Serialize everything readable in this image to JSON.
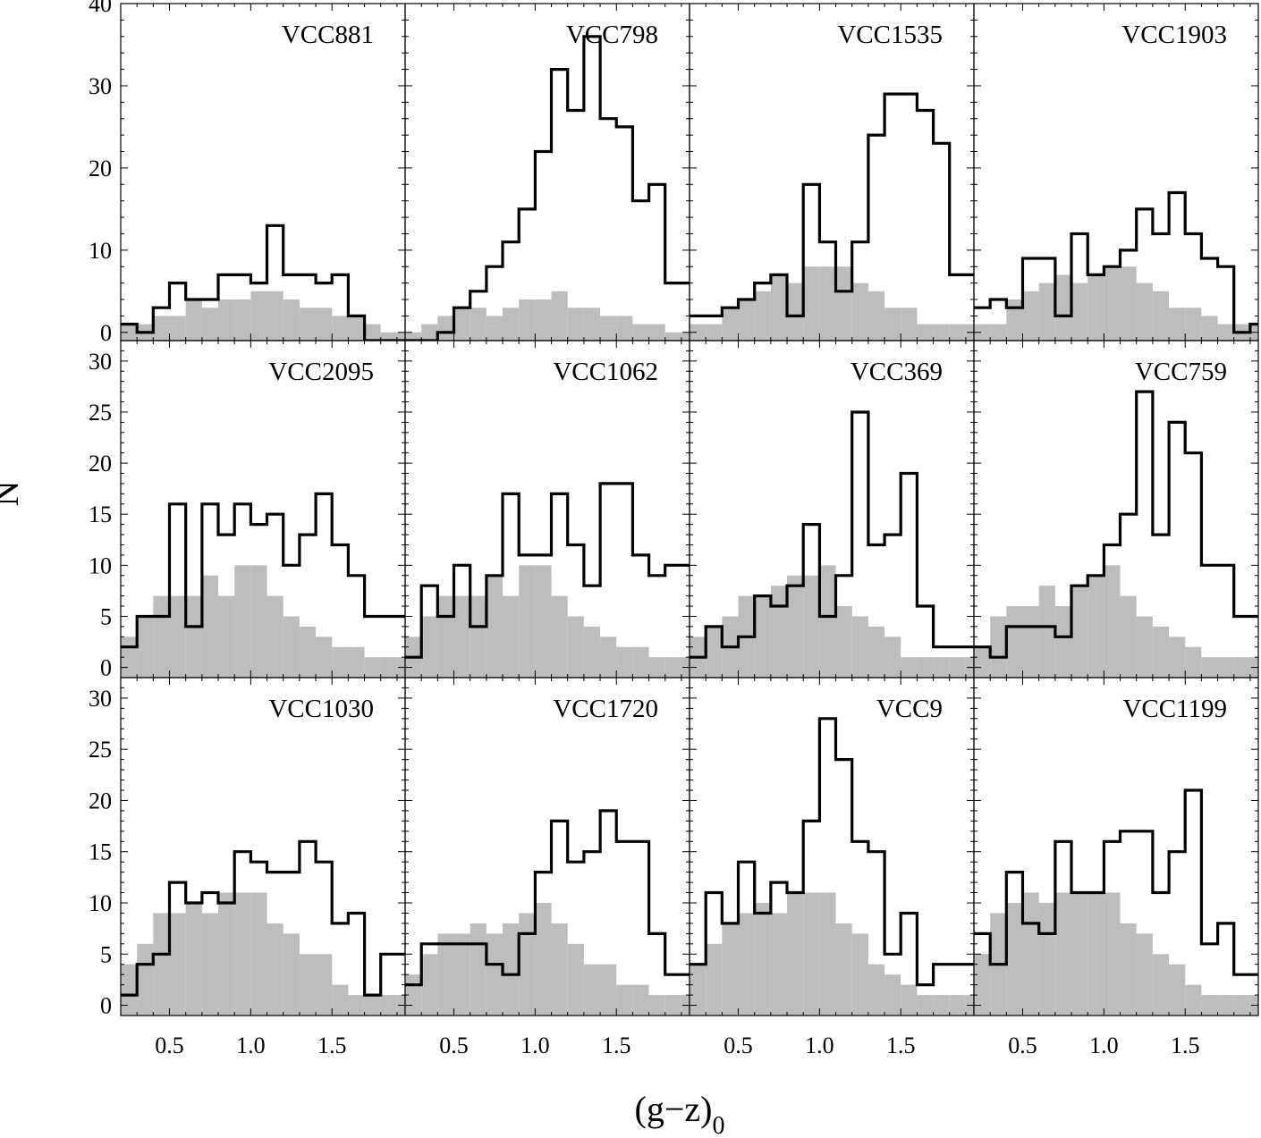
{
  "chart_data": {
    "type": "histogram-grid",
    "xlabel": "(g−z)",
    "xlabel_subscript": "0",
    "ylabel": "N",
    "x_range": [
      0.2,
      1.95
    ],
    "bin_edges": [
      0.2,
      0.3,
      0.4,
      0.5,
      0.6,
      0.7,
      0.8,
      0.9,
      1.0,
      1.1,
      1.2,
      1.3,
      1.4,
      1.5,
      1.6,
      1.7,
      1.8,
      1.9,
      2.0
    ],
    "x_ticks": [
      0.5,
      1.0,
      1.5
    ],
    "x_tick_labels": [
      "0.5",
      "1.0",
      "1.5"
    ],
    "rows": [
      {
        "ylim": [
          -1,
          40
        ],
        "y_ticks": [
          0,
          10,
          20,
          30,
          40
        ],
        "y_tick_labels": [
          "0",
          "10",
          "20",
          "30",
          "40"
        ]
      },
      {
        "ylim": [
          -1,
          32
        ],
        "y_ticks": [
          0,
          5,
          10,
          15,
          20,
          25,
          30
        ],
        "y_tick_labels": [
          "0",
          "5",
          "10",
          "15",
          "20",
          "25",
          "30"
        ]
      },
      {
        "ylim": [
          -1,
          32
        ],
        "y_ticks": [
          0,
          5,
          10,
          15,
          20,
          25,
          30
        ],
        "y_tick_labels": [
          "0",
          "5",
          "10",
          "15",
          "20",
          "25",
          "30"
        ]
      }
    ],
    "panels": [
      {
        "name": "VCC881",
        "row": 0,
        "col": 0,
        "counts": [
          1,
          0,
          3,
          6,
          4,
          4,
          7,
          7,
          6,
          13,
          7,
          7,
          6,
          7,
          2,
          -1,
          -1,
          -1
        ],
        "background": [
          1,
          1,
          2,
          2,
          4,
          3,
          4,
          4,
          5,
          5,
          4,
          3,
          3,
          2,
          2,
          1,
          0,
          0
        ]
      },
      {
        "name": "VCC798",
        "row": 0,
        "col": 1,
        "counts": [
          -1,
          -1,
          0,
          3,
          5,
          8,
          11,
          15,
          22,
          32,
          27,
          36,
          26,
          25,
          16,
          18,
          6,
          6
        ],
        "background": [
          0,
          1,
          2,
          3,
          3,
          2,
          3,
          4,
          4,
          5,
          3,
          3,
          2,
          2,
          1,
          1,
          0,
          0
        ]
      },
      {
        "name": "VCC1535",
        "row": 0,
        "col": 2,
        "counts": [
          2,
          2,
          3,
          4,
          6,
          7,
          2,
          18,
          11,
          5,
          11,
          24,
          29,
          29,
          27,
          23,
          7,
          7
        ],
        "background": [
          1,
          1,
          3,
          4,
          5,
          7,
          6,
          8,
          8,
          8,
          6,
          5,
          3,
          3,
          1,
          1,
          1,
          1
        ]
      },
      {
        "name": "VCC1903",
        "row": 0,
        "col": 3,
        "counts": [
          3,
          4,
          3,
          9,
          9,
          2,
          12,
          7,
          8,
          10,
          15,
          12,
          17,
          12,
          9,
          8,
          0,
          1
        ],
        "background": [
          1,
          1,
          4,
          5,
          6,
          7,
          6,
          7,
          8,
          8,
          6,
          5,
          3,
          3,
          2,
          1,
          1,
          1
        ]
      },
      {
        "name": "VCC2095",
        "row": 1,
        "col": 0,
        "counts": [
          2,
          5,
          5,
          16,
          4,
          16,
          13,
          16,
          14,
          15,
          10,
          13,
          17,
          12,
          9,
          5,
          5,
          5
        ],
        "background": [
          3,
          5,
          7,
          7,
          7,
          9,
          7,
          10,
          10,
          7,
          5,
          4,
          3,
          2,
          2,
          1,
          1,
          1
        ]
      },
      {
        "name": "VCC1062",
        "row": 1,
        "col": 1,
        "counts": [
          1,
          8,
          5,
          10,
          4,
          9,
          17,
          11,
          11,
          17,
          12,
          8,
          18,
          18,
          11,
          9,
          10,
          10
        ],
        "background": [
          3,
          5,
          7,
          7,
          7,
          9,
          7,
          10,
          10,
          7,
          5,
          4,
          3,
          2,
          2,
          1,
          1,
          1
        ]
      },
      {
        "name": "VCC369",
        "row": 1,
        "col": 2,
        "counts": [
          1,
          4,
          2,
          3,
          7,
          6,
          8,
          14,
          5,
          9,
          25,
          12,
          13,
          19,
          6,
          2,
          2,
          2
        ],
        "background": [
          3,
          4,
          5,
          7,
          7,
          8,
          9,
          9,
          10,
          6,
          5,
          4,
          3,
          1,
          1,
          1,
          1,
          1
        ]
      },
      {
        "name": "VCC759",
        "row": 1,
        "col": 3,
        "counts": [
          2,
          1,
          4,
          4,
          4,
          3,
          8,
          9,
          12,
          15,
          27,
          13,
          24,
          21,
          10,
          10,
          5,
          5
        ],
        "background": [
          2,
          5,
          6,
          6,
          8,
          6,
          8,
          9,
          10,
          7,
          5,
          4,
          3,
          2,
          1,
          1,
          1,
          1
        ]
      },
      {
        "name": "VCC1030",
        "row": 2,
        "col": 0,
        "counts": [
          1,
          4,
          5,
          12,
          10,
          11,
          10,
          15,
          14,
          13,
          13,
          16,
          14,
          8,
          9,
          1,
          5,
          5
        ],
        "background": [
          4,
          6,
          9,
          9,
          10,
          9,
          11,
          11,
          11,
          8,
          7,
          5,
          5,
          2,
          1,
          1,
          1,
          1
        ]
      },
      {
        "name": "VCC1720",
        "row": 2,
        "col": 1,
        "counts": [
          2,
          6,
          6,
          6,
          6,
          4,
          3,
          7,
          13,
          18,
          14,
          15,
          19,
          16,
          16,
          7,
          3,
          3
        ],
        "background": [
          3,
          5,
          7,
          7,
          8,
          7,
          8,
          9,
          10,
          8,
          6,
          4,
          4,
          2,
          2,
          1,
          1,
          1
        ]
      },
      {
        "name": "VCC9",
        "row": 2,
        "col": 2,
        "counts": [
          4,
          11,
          8,
          14,
          9,
          12,
          11,
          18,
          28,
          24,
          16,
          15,
          5,
          9,
          2,
          4,
          4,
          4
        ],
        "background": [
          4,
          6,
          8,
          9,
          10,
          9,
          11,
          11,
          11,
          8,
          7,
          4,
          3,
          2,
          1,
          1,
          1,
          1
        ]
      },
      {
        "name": "VCC1199",
        "row": 2,
        "col": 3,
        "counts": [
          7,
          4,
          13,
          8,
          7,
          16,
          11,
          11,
          16,
          17,
          17,
          11,
          15,
          21,
          6,
          8,
          3,
          3
        ],
        "background": [
          5,
          9,
          10,
          11,
          10,
          11,
          11,
          11,
          11,
          8,
          7,
          5,
          4,
          2,
          1,
          1,
          1,
          1
        ]
      }
    ]
  }
}
